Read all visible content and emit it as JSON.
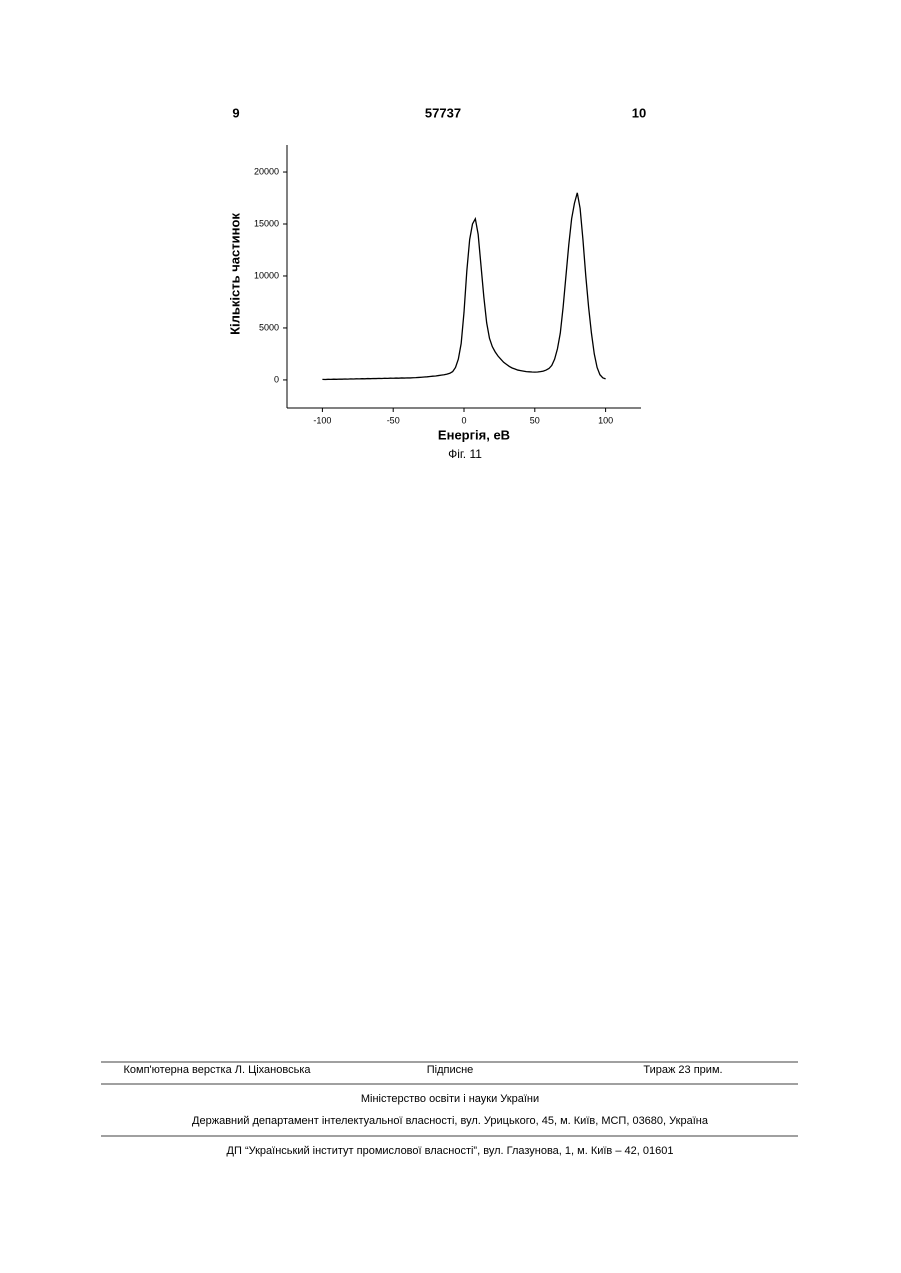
{
  "header": {
    "left": "9",
    "center": "57737",
    "right": "10"
  },
  "chart_data": {
    "type": "line",
    "y_label": "Кількість частинок",
    "x_label": "Енергія, еВ",
    "caption": "Фіг. 11",
    "x": [
      -100,
      -98,
      -96,
      -94,
      -92,
      -90,
      -88,
      -86,
      -84,
      -82,
      -80,
      -78,
      -76,
      -74,
      -72,
      -70,
      -68,
      -66,
      -64,
      -62,
      -60,
      -58,
      -56,
      -54,
      -52,
      -50,
      -48,
      -46,
      -44,
      -42,
      -40,
      -38,
      -36,
      -34,
      -32,
      -30,
      -28,
      -26,
      -24,
      -22,
      -20,
      -18,
      -16,
      -14,
      -12,
      -10,
      -8,
      -6,
      -4,
      -2,
      0,
      2,
      4,
      6,
      8,
      10,
      12,
      14,
      16,
      18,
      20,
      22,
      24,
      26,
      28,
      30,
      32,
      34,
      36,
      38,
      40,
      42,
      44,
      46,
      48,
      50,
      52,
      54,
      56,
      58,
      60,
      62,
      64,
      66,
      68,
      70,
      72,
      74,
      76,
      78,
      80,
      82,
      84,
      86,
      88,
      90,
      92,
      94,
      96,
      98,
      100
    ],
    "values": [
      50,
      40,
      60,
      50,
      70,
      60,
      80,
      70,
      90,
      80,
      100,
      90,
      110,
      100,
      120,
      110,
      130,
      120,
      140,
      130,
      150,
      140,
      160,
      150,
      170,
      160,
      180,
      170,
      190,
      180,
      200,
      190,
      210,
      220,
      240,
      260,
      280,
      300,
      330,
      360,
      380,
      420,
      460,
      500,
      560,
      640,
      800,
      1200,
      2000,
      3500,
      6500,
      10500,
      13500,
      15000,
      15500,
      14000,
      11000,
      8000,
      5500,
      4000,
      3200,
      2700,
      2300,
      2000,
      1700,
      1500,
      1300,
      1150,
      1050,
      950,
      900,
      850,
      800,
      780,
      760,
      750,
      760,
      800,
      850,
      950,
      1100,
      1400,
      2000,
      3000,
      4500,
      7000,
      10000,
      13000,
      15500,
      17000,
      18000,
      16500,
      13500,
      10000,
      7000,
      4500,
      2500,
      1200,
      500,
      200,
      100
    ],
    "color": "#000000",
    "xlim": [
      -125,
      125
    ],
    "xticks": [
      -100,
      -50,
      0,
      50,
      100
    ],
    "ylim": [
      -2700,
      22600
    ],
    "yticks": [
      0,
      5000,
      10000,
      15000,
      20000
    ]
  },
  "footer": {
    "composer": "Комп'ютерна верстка Л. Ціхановська",
    "subscription": "Підписне",
    "circulation": "Тираж 23 прим.",
    "ministry": "Міністерство освіти і науки України",
    "department": "Державний департамент інтелектуальної власності, вул. Урицького, 45, м. Київ, МСП, 03680, Україна",
    "institute": "ДП “Український інститут промислової власності”, вул. Глазунова, 1, м. Київ – 42, 01601"
  }
}
